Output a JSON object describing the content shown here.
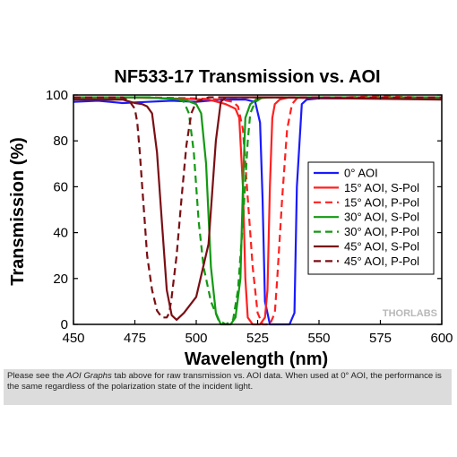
{
  "chart_data": {
    "type": "line",
    "title": "NF533-17 Transmission vs. AOI",
    "xlabel": "Wavelength (nm)",
    "ylabel": "Transmission (%)",
    "xlim": [
      450,
      600
    ],
    "ylim": [
      0,
      100
    ],
    "xticks": [
      450,
      475,
      500,
      525,
      550,
      575,
      600
    ],
    "yticks": [
      0,
      20,
      40,
      60,
      80,
      100
    ],
    "grid": false,
    "legend_position": "right",
    "series": [
      {
        "name": "0° AOI",
        "color": "#1a1aff",
        "dash": "solid",
        "x": [
          450,
          460,
          470,
          480,
          490,
          500,
          510,
          515,
          520,
          524,
          526,
          527,
          528,
          530,
          535,
          538,
          540,
          541,
          543,
          545,
          550,
          560,
          575,
          590,
          600
        ],
        "y": [
          97,
          97.5,
          96.5,
          97,
          97.5,
          97,
          98,
          98,
          98,
          97,
          88,
          55,
          10,
          0,
          0,
          0,
          5,
          60,
          96,
          98,
          98.5,
          98.5,
          99,
          98.5,
          98.5
        ]
      },
      {
        "name": "15° AOI, S-Pol",
        "color": "#ff2020",
        "dash": "solid",
        "x": [
          450,
          470,
          490,
          505,
          512,
          516,
          517.5,
          519,
          520,
          521,
          523,
          526,
          528,
          529,
          530,
          531,
          532,
          534,
          538,
          545,
          560,
          575,
          590,
          600
        ],
        "y": [
          98.5,
          99,
          98.5,
          98,
          96,
          94,
          90,
          60,
          20,
          3,
          0,
          0,
          3,
          15,
          60,
          90,
          96,
          98,
          99,
          99,
          99,
          99,
          99,
          99
        ]
      },
      {
        "name": "15° AOI, P-Pol",
        "color": "#ff2020",
        "dash": "dash",
        "x": [
          450,
          480,
          500,
          510,
          515,
          517,
          519,
          521,
          523,
          525,
          527,
          528,
          530,
          532,
          533,
          535,
          537,
          539,
          541,
          545,
          560,
          575,
          590,
          600
        ],
        "y": [
          99,
          99,
          98.5,
          98,
          97,
          95,
          85,
          55,
          25,
          5,
          0,
          0,
          0,
          5,
          20,
          55,
          85,
          96,
          98.5,
          99,
          99,
          99.5,
          99,
          99
        ]
      },
      {
        "name": "30° AOI, S-Pol",
        "color": "#139913",
        "dash": "solid",
        "x": [
          450,
          480,
          495,
          500,
          502,
          504,
          506,
          508,
          510,
          512,
          514,
          516,
          518,
          519,
          520,
          522,
          525,
          530,
          540,
          560,
          580,
          600
        ],
        "y": [
          99,
          99,
          98,
          96,
          92,
          70,
          25,
          5,
          0,
          0,
          0,
          3,
          20,
          60,
          90,
          96,
          98.5,
          99,
          99,
          99,
          99,
          99
        ]
      },
      {
        "name": "30° AOI, P-Pol",
        "color": "#139913",
        "dash": "dash",
        "x": [
          450,
          480,
          492,
          495,
          497,
          499,
          501,
          503,
          506,
          509,
          512,
          515,
          517,
          519,
          521,
          522,
          524,
          527,
          530,
          545,
          575,
          600
        ],
        "y": [
          99,
          99,
          98.5,
          97,
          92,
          75,
          45,
          25,
          10,
          2,
          0,
          2,
          15,
          45,
          80,
          92,
          97,
          99,
          99,
          99,
          99,
          99
        ]
      },
      {
        "name": "45° AOI, S-Pol",
        "color": "#7a0f14",
        "dash": "solid",
        "x": [
          450,
          460,
          470,
          475,
          478,
          480,
          482,
          484,
          486,
          488,
          490,
          492,
          495,
          500,
          505,
          508,
          510,
          512,
          515,
          520,
          530,
          560,
          600
        ],
        "y": [
          98,
          98,
          98,
          96.5,
          96,
          95,
          92,
          75,
          45,
          15,
          4,
          2,
          5,
          12,
          35,
          80,
          97,
          99,
          99,
          99,
          99,
          98.5,
          98
        ]
      },
      {
        "name": "45° AOI, P-Pol",
        "color": "#7a0f14",
        "dash": "dash",
        "x": [
          450,
          470,
          473,
          475,
          476,
          477,
          478,
          479,
          480,
          482,
          484,
          486,
          488,
          489,
          490,
          492,
          494,
          496,
          498,
          500,
          505,
          520,
          560,
          600
        ],
        "y": [
          99,
          99,
          97,
          94,
          88,
          75,
          60,
          45,
          30,
          15,
          6,
          3,
          3,
          5,
          12,
          30,
          55,
          78,
          92,
          97,
          99,
          99,
          99,
          99
        ]
      }
    ]
  },
  "watermark": "THORLABS",
  "caption": {
    "part1": "Please see the ",
    "italic": "AOI Graphs",
    "part2": " tab above for raw transmission vs. AOI data. When used at 0° AOI, the performance is the same regardless of the polarization state of the incident light."
  }
}
